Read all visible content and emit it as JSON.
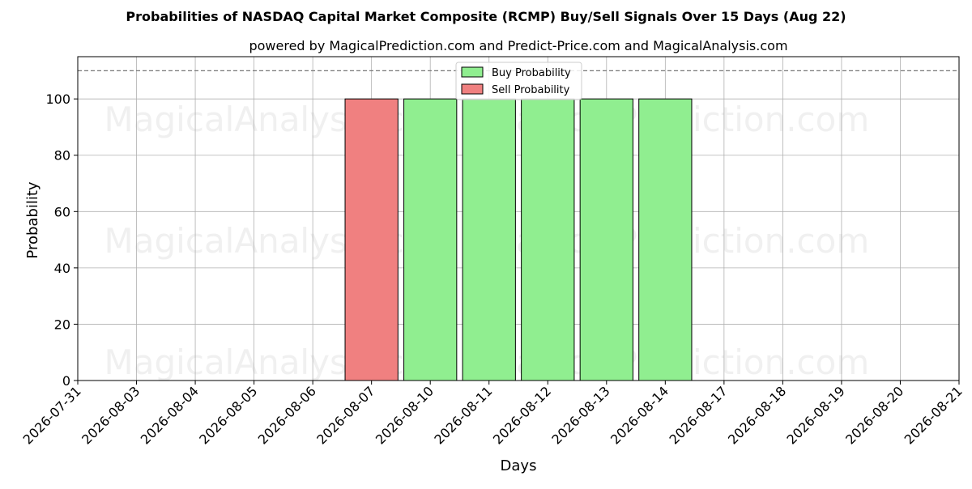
{
  "chart_data": {
    "type": "bar",
    "title": "Probabilities of NASDAQ Capital Market Composite (RCMP) Buy/Sell Signals Over 15 Days (Aug 22)",
    "subtitle": "powered by MagicalPrediction.com and Predict-Price.com and MagicalAnalysis.com",
    "xlabel": "Days",
    "ylabel": "Probability",
    "ylim": [
      0,
      115
    ],
    "yticks": [
      0,
      20,
      40,
      60,
      80,
      100
    ],
    "reference_line": 110,
    "grid": true,
    "legend_position": "top-center",
    "categories": [
      "2026-07-31",
      "2026-08-03",
      "2026-08-04",
      "2026-08-05",
      "2026-08-06",
      "2026-08-07",
      "2026-08-10",
      "2026-08-11",
      "2026-08-12",
      "2026-08-13",
      "2026-08-14",
      "2026-08-17",
      "2026-08-18",
      "2026-08-19",
      "2026-08-20",
      "2026-08-21"
    ],
    "series": [
      {
        "name": "Buy Probability",
        "color": "#90ee90",
        "values": [
          0,
          0,
          0,
          0,
          0,
          0,
          100,
          100,
          100,
          100,
          100,
          0,
          0,
          0,
          0,
          0
        ]
      },
      {
        "name": "Sell Probability",
        "color": "#f08080",
        "values": [
          0,
          0,
          0,
          0,
          0,
          100,
          0,
          0,
          0,
          0,
          0,
          0,
          0,
          0,
          0,
          0
        ]
      }
    ],
    "watermarks": [
      "MagicalAnalysis.com",
      "MagicalPrediction.com"
    ]
  }
}
